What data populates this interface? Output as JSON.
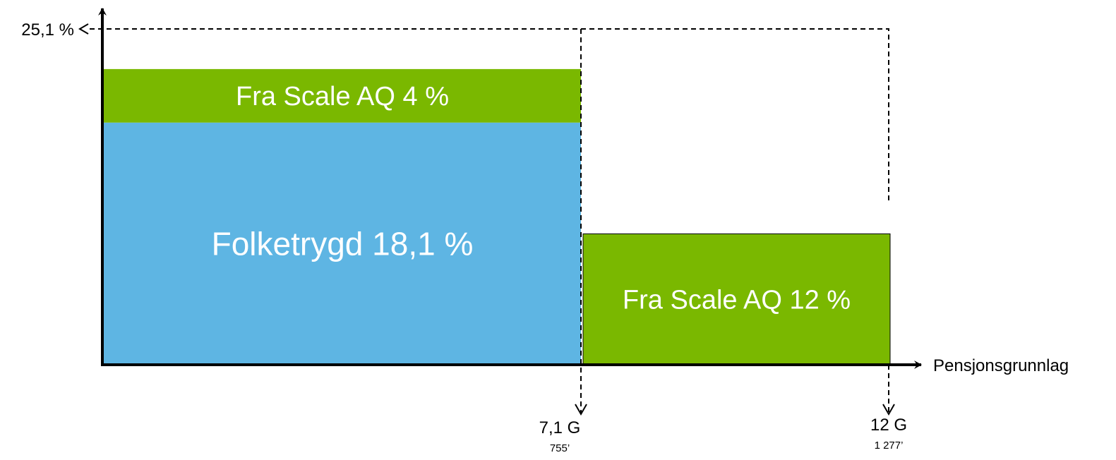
{
  "chart_data": {
    "type": "bar",
    "title": "",
    "ylabel": "",
    "xlabel": "Pensjonsgrunnlag",
    "y_axis_marker": {
      "label": "25,1 %",
      "value": 25.1
    },
    "x_markers": [
      {
        "label": "7,1 G",
        "sublabel": "755’",
        "value_g": 7.1
      },
      {
        "label": "12 G",
        "sublabel": "1 277’",
        "value_g": 12
      }
    ],
    "segments": [
      {
        "label": "Folketrygd 18,1 %",
        "value": 18.1,
        "x_from_g": 0,
        "x_to_g": 7.1,
        "base": 0,
        "color": "#5EB5E3"
      },
      {
        "label": "Fra Scale AQ 4 %",
        "value": 4,
        "x_from_g": 0,
        "x_to_g": 7.1,
        "base": 18.1,
        "color": "#7AB800"
      },
      {
        "label": "Fra Scale AQ 12 %",
        "value": 12,
        "x_from_g": 7.1,
        "x_to_g": 12,
        "base": 0,
        "color": "#7AB800"
      }
    ],
    "ylim": [
      0,
      25.1
    ],
    "xlim_g": [
      0,
      12
    ],
    "grid": false,
    "legend": "none"
  }
}
